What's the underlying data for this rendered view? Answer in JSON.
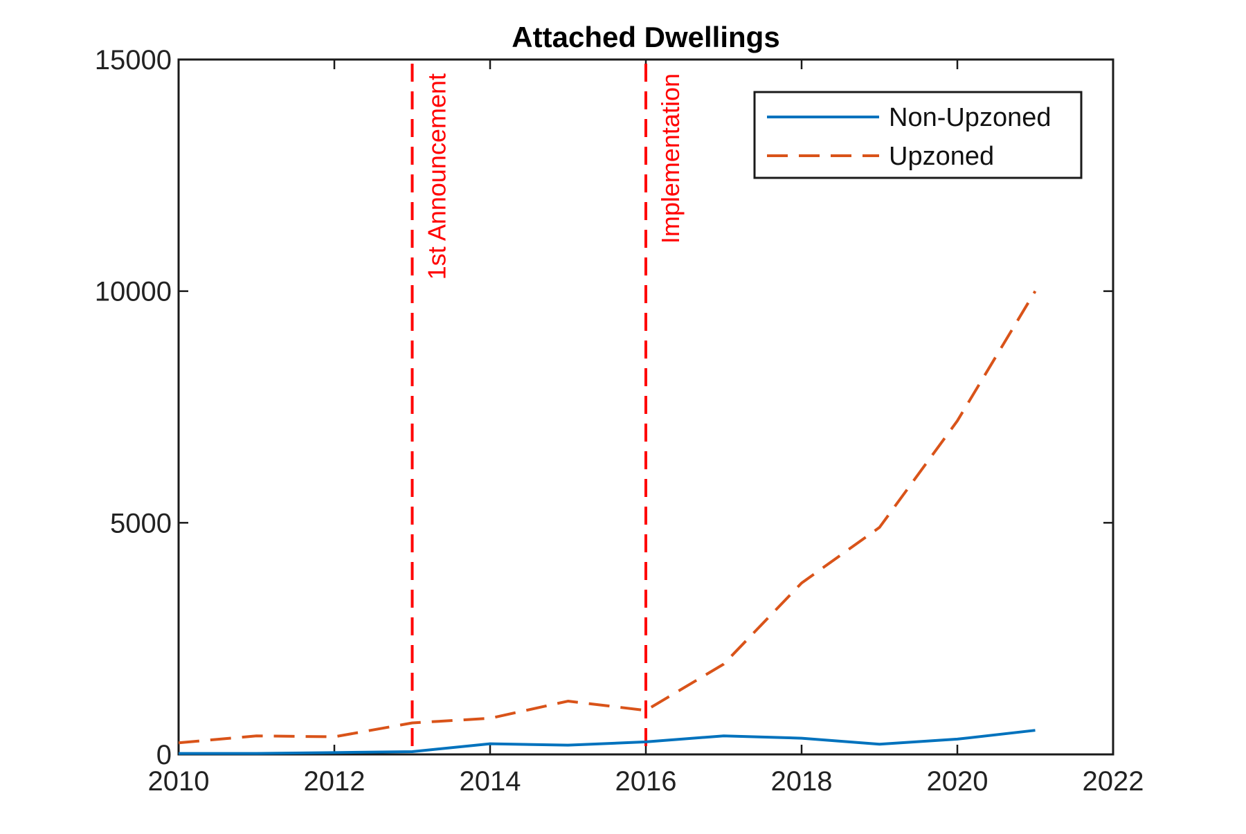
{
  "chart_data": {
    "type": "line",
    "title": "Attached Dwellings",
    "xlabel": "",
    "ylabel": "",
    "xlim": [
      2010,
      2022
    ],
    "ylim": [
      0,
      15000
    ],
    "xticks": [
      2010,
      2012,
      2014,
      2016,
      2018,
      2020,
      2022
    ],
    "yticks": [
      0,
      5000,
      10000,
      15000
    ],
    "grid": false,
    "legend_position": "top-right",
    "x": [
      2010,
      2011,
      2012,
      2013,
      2014,
      2015,
      2016,
      2017,
      2018,
      2019,
      2020,
      2021
    ],
    "series": [
      {
        "name": "Non-Upzoned",
        "color": "#0072BD",
        "line_style": "solid",
        "values": [
          20,
          20,
          40,
          60,
          230,
          200,
          270,
          400,
          350,
          220,
          330,
          520
        ]
      },
      {
        "name": "Upzoned",
        "color": "#D95319",
        "line_style": "dashed",
        "values": [
          250,
          400,
          380,
          680,
          780,
          1150,
          950,
          1950,
          3700,
          4900,
          7200,
          10000
        ]
      }
    ],
    "annotations": [
      {
        "x": 2013,
        "text": "1st Announcement",
        "color": "#FF0000",
        "style": "dashed"
      },
      {
        "x": 2016,
        "text": "Implementation",
        "color": "#FF0000",
        "style": "dashed"
      }
    ]
  }
}
